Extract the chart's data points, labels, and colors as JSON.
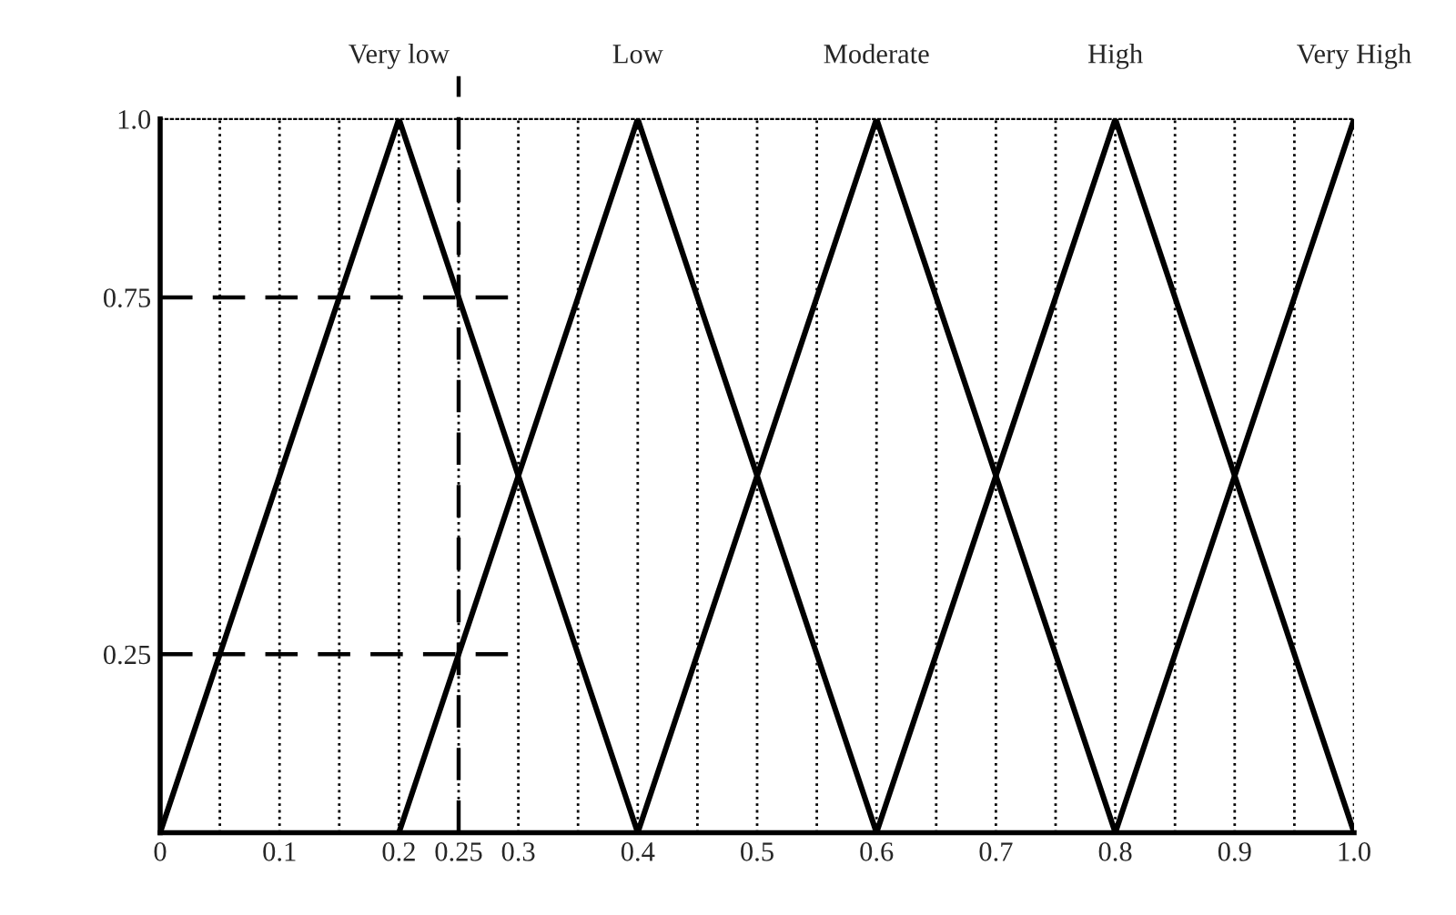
{
  "chart_data": {
    "type": "line",
    "x": [
      0,
      0.2,
      0.4,
      0.6,
      0.8,
      1.0
    ],
    "series": [
      {
        "name": "Very low",
        "color": "#000000",
        "values": [
          0,
          1,
          0,
          null,
          null,
          null
        ]
      },
      {
        "name": "Low",
        "color": "#000000",
        "values": [
          null,
          0,
          1,
          0,
          null,
          null
        ]
      },
      {
        "name": "Moderate",
        "color": "#000000",
        "values": [
          null,
          null,
          0,
          1,
          0,
          null
        ]
      },
      {
        "name": "High",
        "color": "#000000",
        "values": [
          null,
          null,
          null,
          0,
          1,
          0
        ]
      },
      {
        "name": "Very High",
        "color": "#000000",
        "values": [
          null,
          null,
          null,
          null,
          0,
          1
        ]
      }
    ],
    "xlim": [
      0,
      1.0
    ],
    "ylim": [
      0,
      1.0
    ],
    "xticks": [
      0,
      {
        "value": 0.05,
        "label": null
      },
      0.1,
      {
        "value": 0.15,
        "label": null
      },
      0.2,
      0.25,
      0.3,
      {
        "value": 0.35,
        "label": null
      },
      0.4,
      {
        "value": 0.45,
        "label": null
      },
      0.5,
      {
        "value": 0.55,
        "label": null
      },
      0.6,
      {
        "value": 0.65,
        "label": null
      },
      0.7,
      {
        "value": 0.75,
        "label": null
      },
      0.8,
      {
        "value": 0.85,
        "label": null
      },
      0.9,
      {
        "value": 0.95,
        "label": null
      },
      {
        "value": 1.0,
        "label": "1.0"
      }
    ],
    "yticks": [
      0.25,
      0.75,
      {
        "value": 1.0,
        "label": "1.0"
      }
    ],
    "ref_lines": [
      {
        "axis": "y",
        "value": 0.25,
        "line_style": "dashed",
        "color": "#000000"
      },
      {
        "axis": "y",
        "value": 0.75,
        "line_style": "dashed",
        "color": "#000000"
      },
      {
        "axis": "x",
        "value": 0.25,
        "line_style": "dashed",
        "color": "#000000"
      }
    ],
    "grid": "x",
    "legend": false,
    "marker": "none",
    "line_style": "solid"
  }
}
